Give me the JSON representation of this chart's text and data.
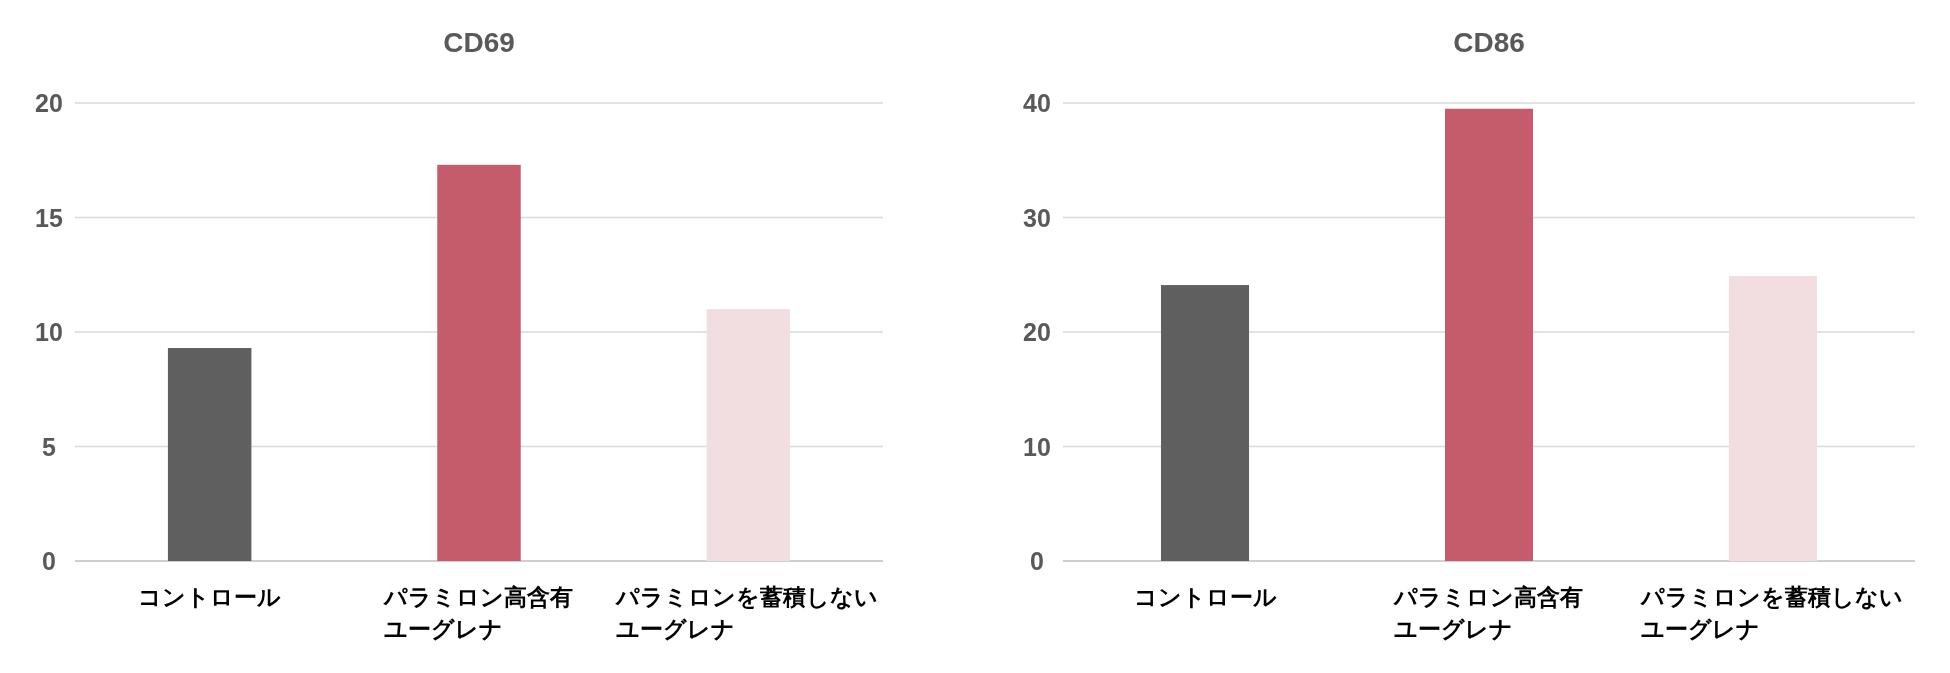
{
  "chart_data": [
    {
      "type": "bar",
      "title": "CD69",
      "categories": [
        "コントロール",
        "パラミロン高含有ユーグレナ",
        "パラミロンを蓄積しないユーグレナ"
      ],
      "values": [
        9.3,
        17.3,
        11.0
      ],
      "colors": [
        "#5f5f5f",
        "#c45c6c",
        "#f2dde0"
      ],
      "ylim": [
        0,
        20
      ],
      "yticks": [
        0,
        5,
        10,
        15,
        20
      ],
      "grid": "y"
    },
    {
      "type": "bar",
      "title": "CD86",
      "categories": [
        "コントロール",
        "パラミロン高含有ユーグレナ",
        "パラミロンを蓄積しないユーグレナ"
      ],
      "values": [
        24.1,
        39.5,
        24.9
      ],
      "colors": [
        "#5f5f5f",
        "#c45c6c",
        "#f2dde0"
      ],
      "ylim": [
        0,
        40
      ],
      "yticks": [
        0,
        10,
        20,
        30,
        40
      ],
      "grid": "y"
    }
  ]
}
